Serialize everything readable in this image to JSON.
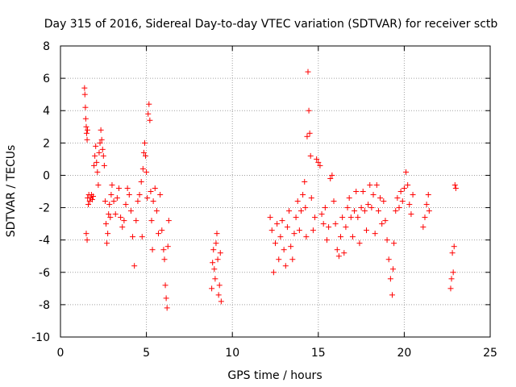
{
  "chart_data": {
    "type": "scatter",
    "title": "Day 315 of 2016, Sidereal Day-to-day VTEC variation (SDTVAR) for receiver sctb",
    "xlabel": "GPS time / hours",
    "ylabel": "SDTVAR / TECUs",
    "xlim": [
      0,
      25
    ],
    "ylim": [
      -10,
      8
    ],
    "xticks": [
      0,
      5,
      10,
      15,
      20,
      25
    ],
    "xtick_labels": [
      "0",
      "5",
      "10",
      "15",
      "20",
      "25"
    ],
    "yticks": [
      -10,
      -8,
      -6,
      -4,
      -2,
      0,
      2,
      4,
      6,
      8
    ],
    "ytick_labels": [
      "-10",
      "-8",
      "-6",
      "-4",
      "-2",
      "0",
      "2",
      "4",
      "6",
      "8"
    ],
    "grid": true,
    "marker": "+",
    "marker_color": "#ff0000",
    "series": [
      {
        "name": "sctb",
        "points": [
          [
            1.4,
            5.4
          ],
          [
            1.42,
            5.0
          ],
          [
            1.45,
            4.2
          ],
          [
            1.47,
            3.5
          ],
          [
            1.5,
            3.0
          ],
          [
            1.52,
            2.6
          ],
          [
            1.55,
            2.2
          ],
          [
            1.57,
            2.8
          ],
          [
            1.5,
            -3.6
          ],
          [
            1.55,
            -4.0
          ],
          [
            1.58,
            -1.4
          ],
          [
            1.62,
            -1.8
          ],
          [
            1.65,
            -1.2
          ],
          [
            1.7,
            -1.6
          ],
          [
            1.75,
            -1.4
          ],
          [
            1.8,
            -1.2
          ],
          [
            1.85,
            -1.5
          ],
          [
            1.9,
            -1.3
          ],
          [
            1.95,
            0.6
          ],
          [
            2.0,
            1.2
          ],
          [
            2.05,
            1.8
          ],
          [
            2.1,
            0.8
          ],
          [
            2.15,
            0.2
          ],
          [
            2.2,
            -0.6
          ],
          [
            2.25,
            1.4
          ],
          [
            2.3,
            2.0
          ],
          [
            2.35,
            2.8
          ],
          [
            2.4,
            2.2
          ],
          [
            2.45,
            1.6
          ],
          [
            2.5,
            1.2
          ],
          [
            2.55,
            0.6
          ],
          [
            2.6,
            -1.6
          ],
          [
            2.65,
            -3.0
          ],
          [
            2.7,
            -4.2
          ],
          [
            2.75,
            -3.6
          ],
          [
            2.8,
            -2.4
          ],
          [
            2.85,
            -1.8
          ],
          [
            2.9,
            -2.6
          ],
          [
            2.95,
            -1.2
          ],
          [
            3.0,
            -0.6
          ],
          [
            3.1,
            -1.6
          ],
          [
            3.2,
            -2.4
          ],
          [
            3.3,
            -1.4
          ],
          [
            3.4,
            -0.8
          ],
          [
            3.5,
            -2.6
          ],
          [
            3.6,
            -3.2
          ],
          [
            3.7,
            -2.8
          ],
          [
            3.8,
            -1.8
          ],
          [
            3.9,
            -0.8
          ],
          [
            4.0,
            -1.2
          ],
          [
            4.1,
            -2.2
          ],
          [
            4.2,
            -3.8
          ],
          [
            4.3,
            -5.6
          ],
          [
            4.4,
            -2.8
          ],
          [
            4.5,
            -1.6
          ],
          [
            4.6,
            -1.2
          ],
          [
            4.7,
            -0.4
          ],
          [
            4.75,
            -3.8
          ],
          [
            4.8,
            0.4
          ],
          [
            4.85,
            1.4
          ],
          [
            4.9,
            2.0
          ],
          [
            4.95,
            1.2
          ],
          [
            5.0,
            0.2
          ],
          [
            5.05,
            -1.4
          ],
          [
            5.1,
            3.8
          ],
          [
            5.15,
            4.4
          ],
          [
            5.2,
            3.4
          ],
          [
            5.25,
            -1.0
          ],
          [
            5.3,
            -2.8
          ],
          [
            5.35,
            -4.6
          ],
          [
            5.4,
            -1.6
          ],
          [
            5.5,
            -0.8
          ],
          [
            5.6,
            -2.2
          ],
          [
            5.7,
            -3.6
          ],
          [
            5.8,
            -1.2
          ],
          [
            5.9,
            -3.4
          ],
          [
            6.0,
            -4.6
          ],
          [
            6.05,
            -5.2
          ],
          [
            6.1,
            -6.8
          ],
          [
            6.15,
            -7.6
          ],
          [
            6.2,
            -8.2
          ],
          [
            6.25,
            -4.4
          ],
          [
            6.3,
            -2.8
          ],
          [
            8.8,
            -7.0
          ],
          [
            8.85,
            -5.4
          ],
          [
            8.9,
            -4.6
          ],
          [
            8.95,
            -5.8
          ],
          [
            9.0,
            -6.4
          ],
          [
            9.05,
            -4.2
          ],
          [
            9.1,
            -3.6
          ],
          [
            9.15,
            -5.2
          ],
          [
            9.2,
            -7.4
          ],
          [
            9.25,
            -6.8
          ],
          [
            9.3,
            -4.8
          ],
          [
            9.35,
            -7.8
          ],
          [
            12.2,
            -2.6
          ],
          [
            12.3,
            -3.4
          ],
          [
            12.4,
            -6.0
          ],
          [
            12.5,
            -4.2
          ],
          [
            12.6,
            -3.0
          ],
          [
            12.7,
            -5.2
          ],
          [
            12.8,
            -3.8
          ],
          [
            12.9,
            -2.8
          ],
          [
            13.0,
            -4.6
          ],
          [
            13.1,
            -5.6
          ],
          [
            13.2,
            -3.2
          ],
          [
            13.3,
            -2.2
          ],
          [
            13.4,
            -4.4
          ],
          [
            13.5,
            -5.2
          ],
          [
            13.6,
            -3.6
          ],
          [
            13.7,
            -2.6
          ],
          [
            13.8,
            -1.6
          ],
          [
            13.9,
            -3.4
          ],
          [
            14.0,
            -2.2
          ],
          [
            14.1,
            -1.2
          ],
          [
            14.2,
            -0.4
          ],
          [
            14.25,
            -2.0
          ],
          [
            14.3,
            -3.8
          ],
          [
            14.35,
            2.4
          ],
          [
            14.4,
            6.4
          ],
          [
            14.45,
            4.0
          ],
          [
            14.5,
            2.6
          ],
          [
            14.55,
            1.2
          ],
          [
            14.6,
            -1.4
          ],
          [
            14.7,
            -3.4
          ],
          [
            14.8,
            -2.6
          ],
          [
            14.9,
            1.0
          ],
          [
            15.0,
            0.8
          ],
          [
            15.1,
            0.6
          ],
          [
            15.2,
            -2.4
          ],
          [
            15.3,
            -3.0
          ],
          [
            15.4,
            -2.0
          ],
          [
            15.5,
            -4.0
          ],
          [
            15.6,
            -3.2
          ],
          [
            15.7,
            -0.2
          ],
          [
            15.8,
            0.0
          ],
          [
            15.9,
            -1.6
          ],
          [
            16.0,
            -3.0
          ],
          [
            16.1,
            -4.6
          ],
          [
            16.2,
            -5.0
          ],
          [
            16.3,
            -3.8
          ],
          [
            16.4,
            -2.6
          ],
          [
            16.5,
            -4.8
          ],
          [
            16.6,
            -3.2
          ],
          [
            16.7,
            -2.0
          ],
          [
            16.8,
            -1.4
          ],
          [
            16.9,
            -2.6
          ],
          [
            17.0,
            -3.8
          ],
          [
            17.1,
            -2.2
          ],
          [
            17.2,
            -1.0
          ],
          [
            17.3,
            -2.6
          ],
          [
            17.4,
            -4.2
          ],
          [
            17.5,
            -2.0
          ],
          [
            17.6,
            -1.0
          ],
          [
            17.7,
            -2.2
          ],
          [
            17.8,
            -3.4
          ],
          [
            17.9,
            -1.8
          ],
          [
            18.0,
            -0.6
          ],
          [
            18.1,
            -2.0
          ],
          [
            18.2,
            -1.2
          ],
          [
            18.3,
            -3.6
          ],
          [
            18.4,
            -0.6
          ],
          [
            18.5,
            -2.2
          ],
          [
            18.6,
            -1.4
          ],
          [
            18.7,
            -3.0
          ],
          [
            18.8,
            -1.6
          ],
          [
            18.9,
            -2.8
          ],
          [
            19.0,
            -4.0
          ],
          [
            19.1,
            -5.2
          ],
          [
            19.2,
            -6.4
          ],
          [
            19.3,
            -7.4
          ],
          [
            19.35,
            -5.8
          ],
          [
            19.4,
            -4.2
          ],
          [
            19.5,
            -2.2
          ],
          [
            19.6,
            -1.4
          ],
          [
            19.7,
            -2.0
          ],
          [
            19.8,
            -1.0
          ],
          [
            19.9,
            -1.6
          ],
          [
            20.0,
            -0.8
          ],
          [
            20.1,
            0.2
          ],
          [
            20.2,
            -0.6
          ],
          [
            20.3,
            -1.8
          ],
          [
            20.4,
            -2.4
          ],
          [
            20.5,
            -1.2
          ],
          [
            21.1,
            -3.2
          ],
          [
            21.2,
            -2.6
          ],
          [
            21.3,
            -1.8
          ],
          [
            21.4,
            -1.2
          ],
          [
            21.45,
            -2.2
          ],
          [
            22.7,
            -7.0
          ],
          [
            22.75,
            -6.4
          ],
          [
            22.8,
            -4.8
          ],
          [
            22.85,
            -6.0
          ],
          [
            22.9,
            -4.4
          ],
          [
            22.95,
            -0.6
          ],
          [
            23.0,
            -0.8
          ]
        ]
      }
    ]
  }
}
